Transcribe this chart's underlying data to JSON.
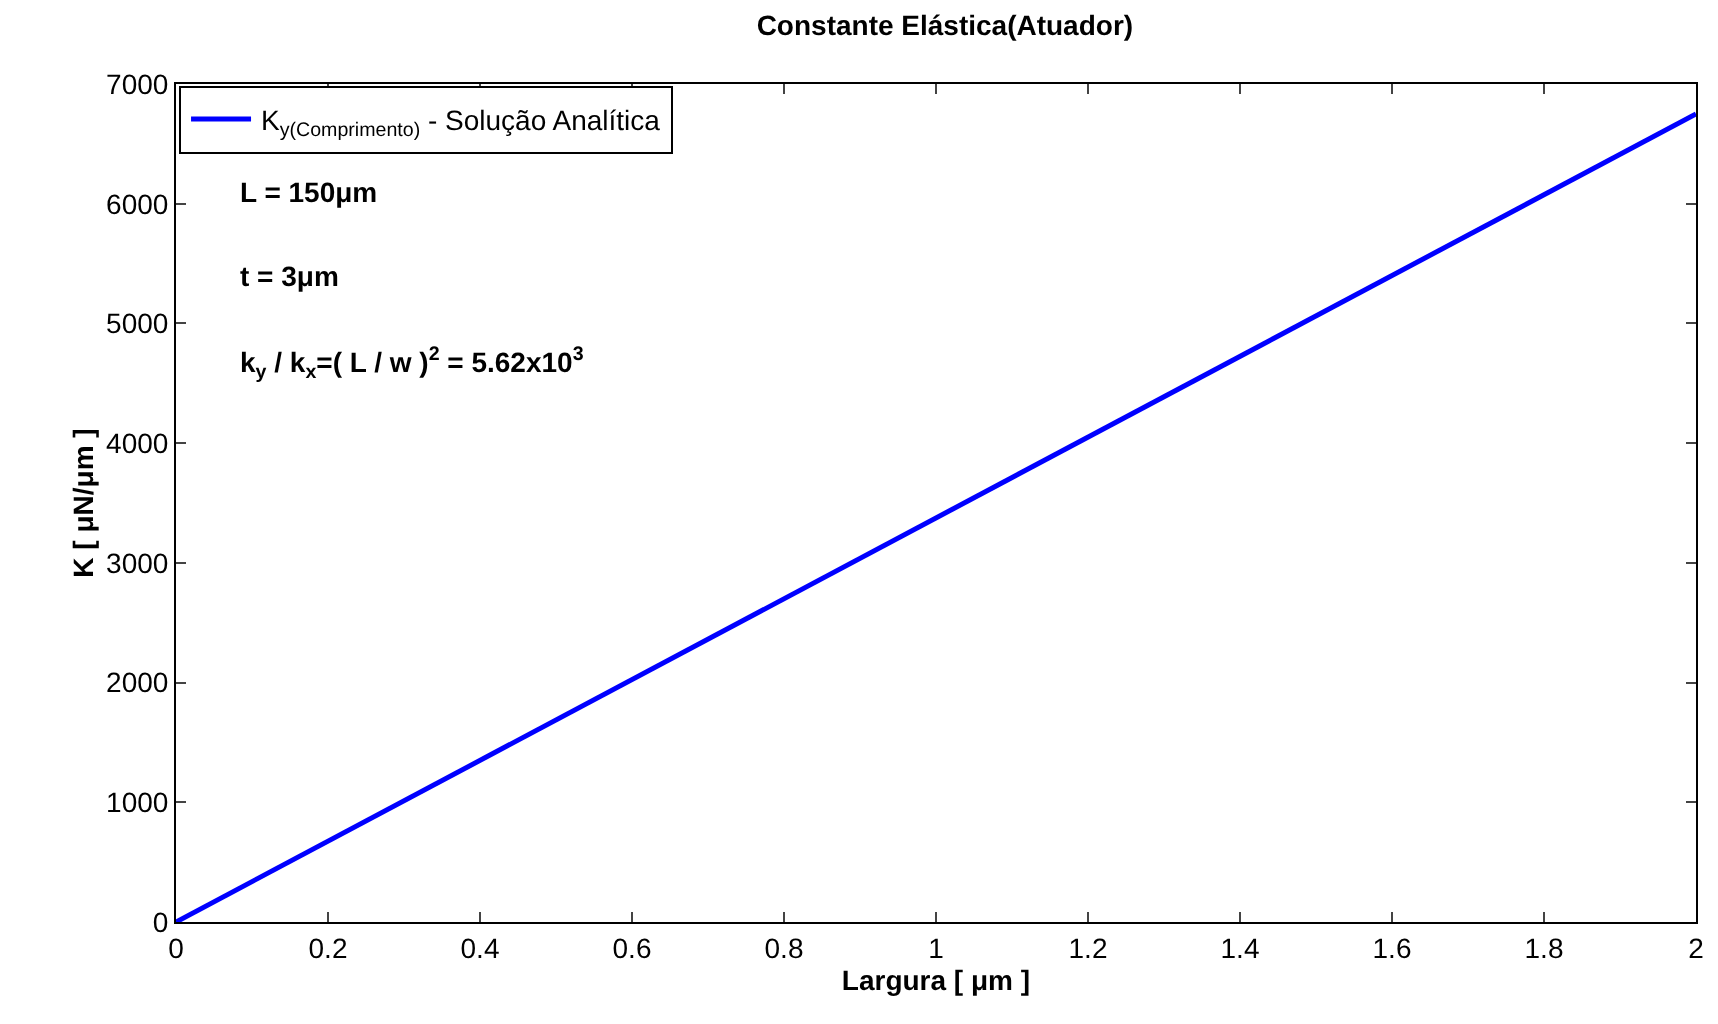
{
  "chart_data": {
    "type": "line",
    "title": "Constante Elástica(Atuador)",
    "xlabel": "Largura [ μm ]",
    "ylabel": "K [ μN/μm ]",
    "x": [
      0,
      2
    ],
    "series": [
      {
        "name": "K$_{y(Comprimento)}$ - Solução Analítica",
        "color": "#0000ff",
        "values": [
          0,
          6750
        ]
      }
    ],
    "xlim": [
      0,
      2
    ],
    "xticks": [
      0,
      0.2,
      0.4,
      0.6,
      0.8,
      1,
      1.2,
      1.4,
      1.6,
      1.8,
      2
    ],
    "ylim": [
      0,
      7000
    ],
    "yticks": [
      0,
      1000,
      2000,
      3000,
      4000,
      5000,
      6000,
      7000
    ],
    "grid": false,
    "legend": "top left",
    "marker": "none",
    "line_style": "solid",
    "annotations": [
      "L = 150μm",
      "t = 3μm",
      "k$_{y}$ / k$_{x}$=( L / w )$^{2}$ = 5.62x10$^{3}$"
    ]
  }
}
